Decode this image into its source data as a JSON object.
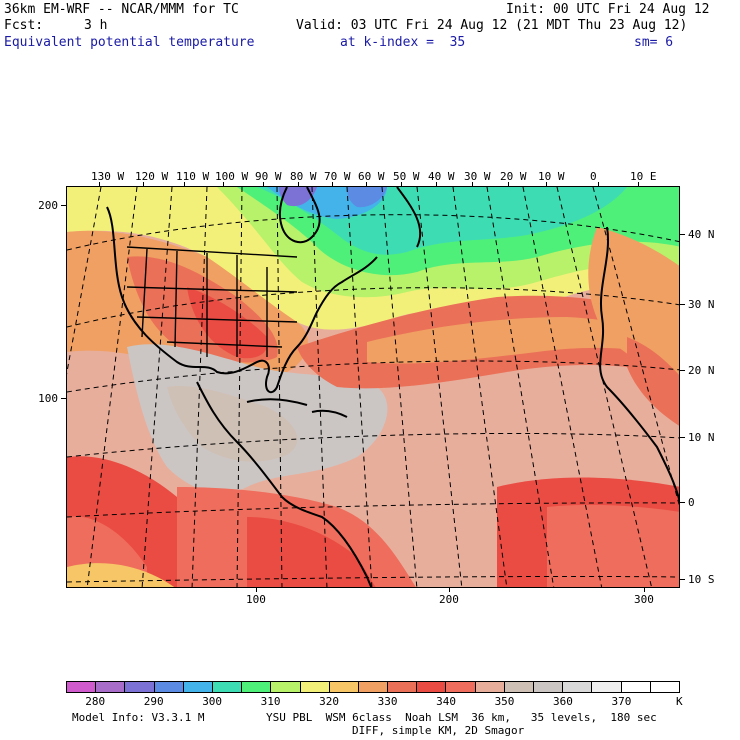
{
  "header": {
    "model": "36km EM-WRF -- NCAR/MMM for TC",
    "init": "Init: 00 UTC Fri 24 Aug 12",
    "fcst_label": "Fcst:",
    "fcst_value": "3 h",
    "valid": "Valid: 03 UTC Fri 24 Aug 12 (21 MDT Thu 23 Aug 12)",
    "field": "Equivalent potential temperature",
    "level": "at k-index =  35",
    "smoothing": "sm= 6"
  },
  "map": {
    "lon_labels": [
      "130 W",
      "120 W",
      "110 W",
      "100 W",
      "90 W",
      "80 W",
      "70 W",
      "60 W",
      "50 W",
      "40 W",
      "30 W",
      "20 W",
      "10 W",
      "0",
      "10 E"
    ],
    "lat_labels": [
      "40 N",
      "30 N",
      "20 N",
      "10 N",
      "0",
      "10 S"
    ],
    "grid_x_labels": [
      "100",
      "200",
      "300"
    ],
    "grid_y_labels": [
      "200",
      "100"
    ]
  },
  "colorbar": {
    "colors": [
      "#cf5bcc",
      "#a86cc9",
      "#7c72d6",
      "#5c8be4",
      "#44b3ea",
      "#3edcb2",
      "#4ff07a",
      "#b7f26a",
      "#f3f07a",
      "#f6c667",
      "#f0a062",
      "#ea7058",
      "#ea4c43",
      "#ef6d5c",
      "#e8ae9c",
      "#cfc0b6",
      "#cbc6c4",
      "#d9d9d9",
      "#efefef",
      "#ffffff",
      "#ffffff"
    ],
    "labels": [
      "280",
      "290",
      "300",
      "310",
      "320",
      "330",
      "340",
      "350",
      "360",
      "370"
    ],
    "unit": "K"
  },
  "footer": {
    "line1_left": "Model Info: V3.3.1 M",
    "line1_right": "YSU PBL  WSM 6class  Noah LSM  36 km,   35 levels,  180 sec",
    "line2": "DIFF, simple KM, 2D Smagor"
  }
}
